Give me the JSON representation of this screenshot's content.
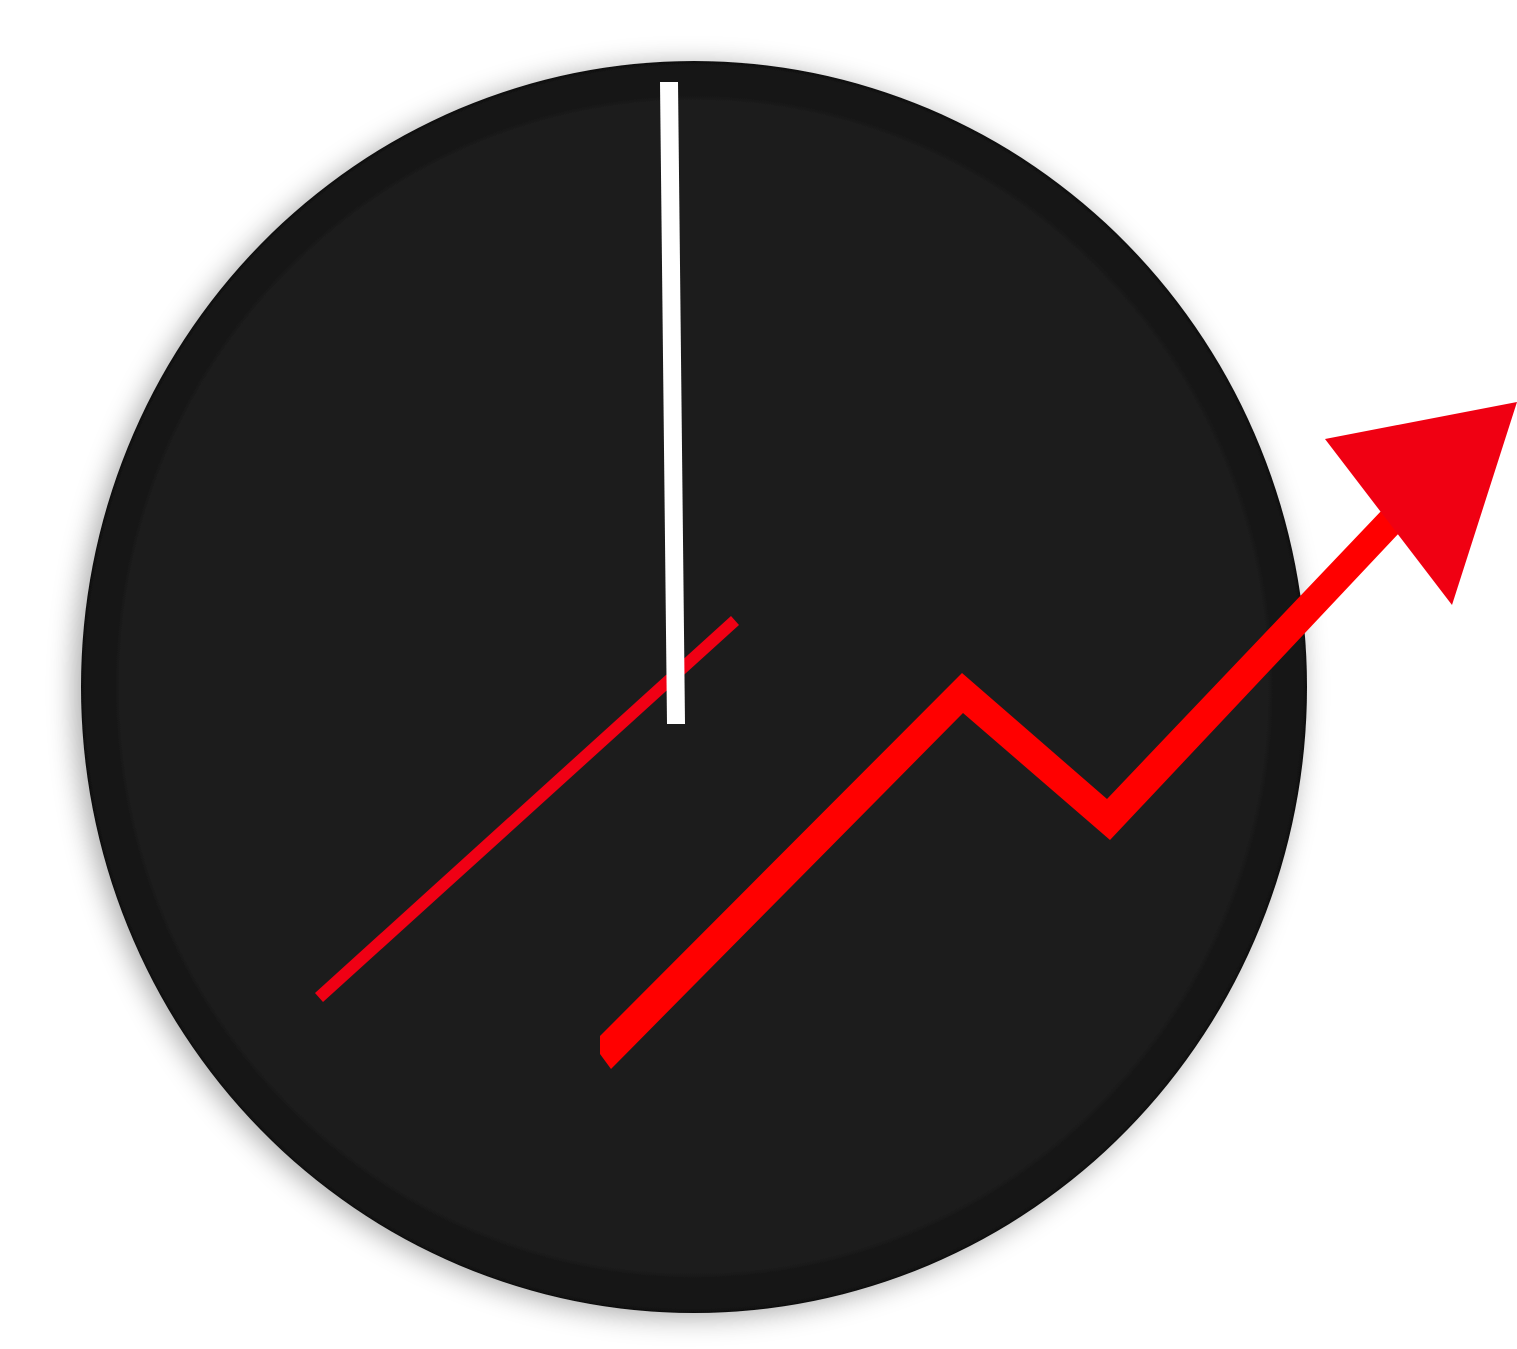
{
  "illustration": {
    "subject": "clock-with-rising-trend-arrow-icon",
    "colors": {
      "background": "#ffffff",
      "clock_face": "#1b1b1b",
      "clock_face_edge": "#111111",
      "minute_hand": "#ffffff",
      "hour_hand": "#f00014",
      "trend_arrow": "#ff0000",
      "arrow_head": "#f00012"
    },
    "icons": {
      "clock_face": "clock-face-icon",
      "minute_hand": "minute-hand-icon",
      "hour_hand": "hour-hand-icon",
      "trend_line": "trend-line-icon",
      "arrow_head": "arrow-head-icon"
    }
  }
}
